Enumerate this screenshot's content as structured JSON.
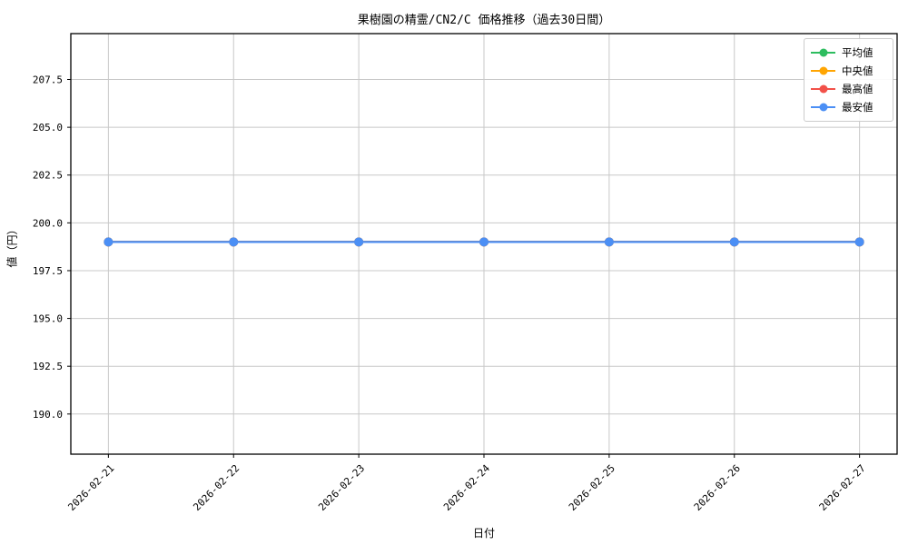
{
  "chart_data": {
    "type": "line",
    "title": "果樹園の精霊/CN2/C 価格推移（過去30日間）",
    "xlabel": "日付",
    "ylabel": "値（円）",
    "categories": [
      "2026-02-21",
      "2026-02-22",
      "2026-02-23",
      "2026-02-24",
      "2026-02-25",
      "2026-02-26",
      "2026-02-27"
    ],
    "series": [
      {
        "name": "平均値",
        "color": "#2dbd5f",
        "values": [
          199.0,
          199.0,
          199.0,
          199.0,
          199.0,
          199.0,
          199.0
        ]
      },
      {
        "name": "中央値",
        "color": "#ffa502",
        "values": [
          199.0,
          199.0,
          199.0,
          199.0,
          199.0,
          199.0,
          199.0
        ]
      },
      {
        "name": "最高値",
        "color": "#f25149",
        "values": [
          199.0,
          199.0,
          199.0,
          199.0,
          199.0,
          199.0,
          199.0
        ]
      },
      {
        "name": "最安値",
        "color": "#4b8ff5",
        "values": [
          199.0,
          199.0,
          199.0,
          199.0,
          199.0,
          199.0,
          199.0
        ]
      }
    ],
    "yticks": [
      190.0,
      192.5,
      195.0,
      197.5,
      200.0,
      202.5,
      205.0,
      207.5
    ],
    "ylim": [
      187.9,
      209.9
    ],
    "xlim": [
      -0.3,
      6.3
    ],
    "grid": true,
    "grid_color": "#c8c8c8",
    "axis_color": "#000000",
    "legend_position": "upper right",
    "x_tick_rotation": 45
  }
}
